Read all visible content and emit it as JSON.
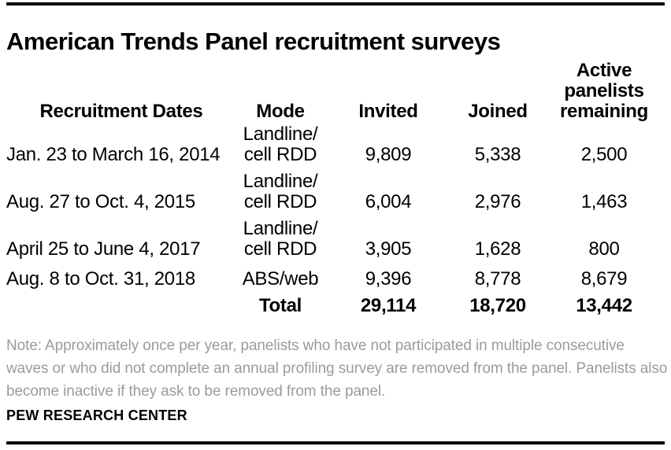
{
  "title": "American Trends Panel recruitment surveys",
  "table": {
    "columns": [
      "Recruitment Dates",
      "Mode",
      "Invited",
      "Joined",
      "Active panelists remaining"
    ],
    "rows": [
      {
        "dates": "Jan. 23 to March 16, 2014",
        "mode": [
          "Landline/",
          "cell RDD"
        ],
        "invited": "9,809",
        "joined": "5,338",
        "active": "2,500"
      },
      {
        "dates": "Aug. 27 to Oct. 4, 2015",
        "mode": [
          "Landline/",
          "cell RDD"
        ],
        "invited": "6,004",
        "joined": "2,976",
        "active": "1,463"
      },
      {
        "dates": "April 25 to June 4, 2017",
        "mode": [
          "Landline/",
          "cell RDD"
        ],
        "invited": "3,905",
        "joined": "1,628",
        "active": "800"
      },
      {
        "dates": "Aug. 8 to Oct. 31, 2018",
        "mode": [
          "ABS/web"
        ],
        "invited": "9,396",
        "joined": "8,778",
        "active": "8,679"
      }
    ],
    "total": {
      "label": "Total",
      "invited": "29,114",
      "joined": "18,720",
      "active": "13,442"
    }
  },
  "note": "Note: Approximately once per year, panelists who have not participated in multiple consecutive waves or who did not complete an annual profiling survey are removed from the panel. Panelists also become inactive if they ask to be removed from the panel.",
  "source": "PEW RESEARCH CENTER",
  "colors": {
    "text": "#000000",
    "note_text": "#9b9b9b",
    "rule": "#000000",
    "background": "#ffffff"
  },
  "chart_data": {
    "type": "table",
    "title": "American Trends Panel recruitment surveys",
    "columns": [
      "Recruitment Dates",
      "Mode",
      "Invited",
      "Joined",
      "Active panelists remaining"
    ],
    "rows": [
      {
        "recruitment_dates": "Jan. 23 to March 16, 2014",
        "mode": "Landline/cell RDD",
        "invited": 9809,
        "joined": 5338,
        "active_panelists_remaining": 2500
      },
      {
        "recruitment_dates": "Aug. 27 to Oct. 4, 2015",
        "mode": "Landline/cell RDD",
        "invited": 6004,
        "joined": 2976,
        "active_panelists_remaining": 1463
      },
      {
        "recruitment_dates": "April 25 to June 4, 2017",
        "mode": "Landline/cell RDD",
        "invited": 3905,
        "joined": 1628,
        "active_panelists_remaining": 800
      },
      {
        "recruitment_dates": "Aug. 8 to Oct. 31, 2018",
        "mode": "ABS/web",
        "invited": 9396,
        "joined": 8778,
        "active_panelists_remaining": 8679
      }
    ],
    "total": {
      "label": "Total",
      "invited": 29114,
      "joined": 18720,
      "active_panelists_remaining": 13442
    },
    "note": "Note: Approximately once per year, panelists who have not participated in multiple consecutive waves or who did not complete an annual profiling survey are removed from the panel. Panelists also become inactive if they ask to be removed from the panel.",
    "source": "PEW RESEARCH CENTER"
  }
}
